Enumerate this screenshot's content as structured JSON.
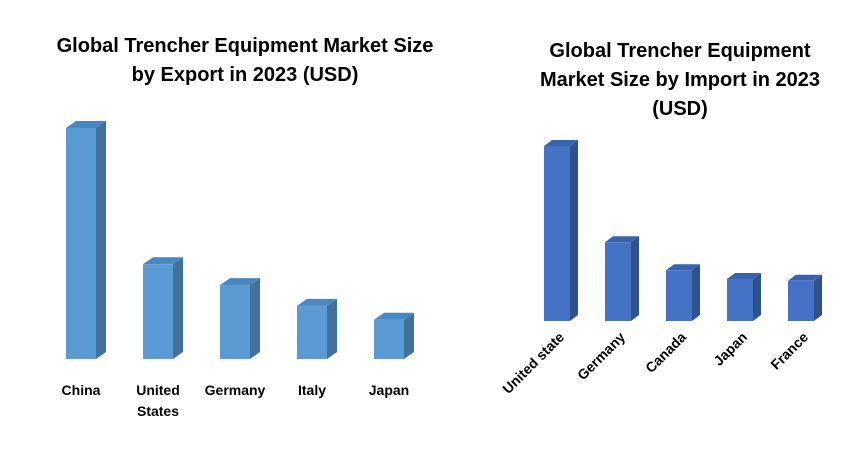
{
  "chart_data": [
    {
      "type": "bar3d",
      "title": "Global Trencher Equipment Market Size by Export in 2023 (USD)",
      "categories": [
        "China",
        "United States",
        "Germany",
        "Italy",
        "Japan"
      ],
      "values": [
        100,
        41,
        32,
        23,
        17
      ],
      "color": "#5b9bd5",
      "side_color": "#41719c",
      "top_color": "#4a86c0"
    },
    {
      "type": "bar3d",
      "title": "Global Trencher Equipment Market Size by Import in 2023 (USD)",
      "categories": [
        "United state",
        "Germany",
        "Canada",
        "Japan",
        "France"
      ],
      "values": [
        100,
        45,
        29,
        24,
        23
      ],
      "color": "#4472c4",
      "side_color": "#2f528f",
      "top_color": "#3a63ad"
    }
  ]
}
